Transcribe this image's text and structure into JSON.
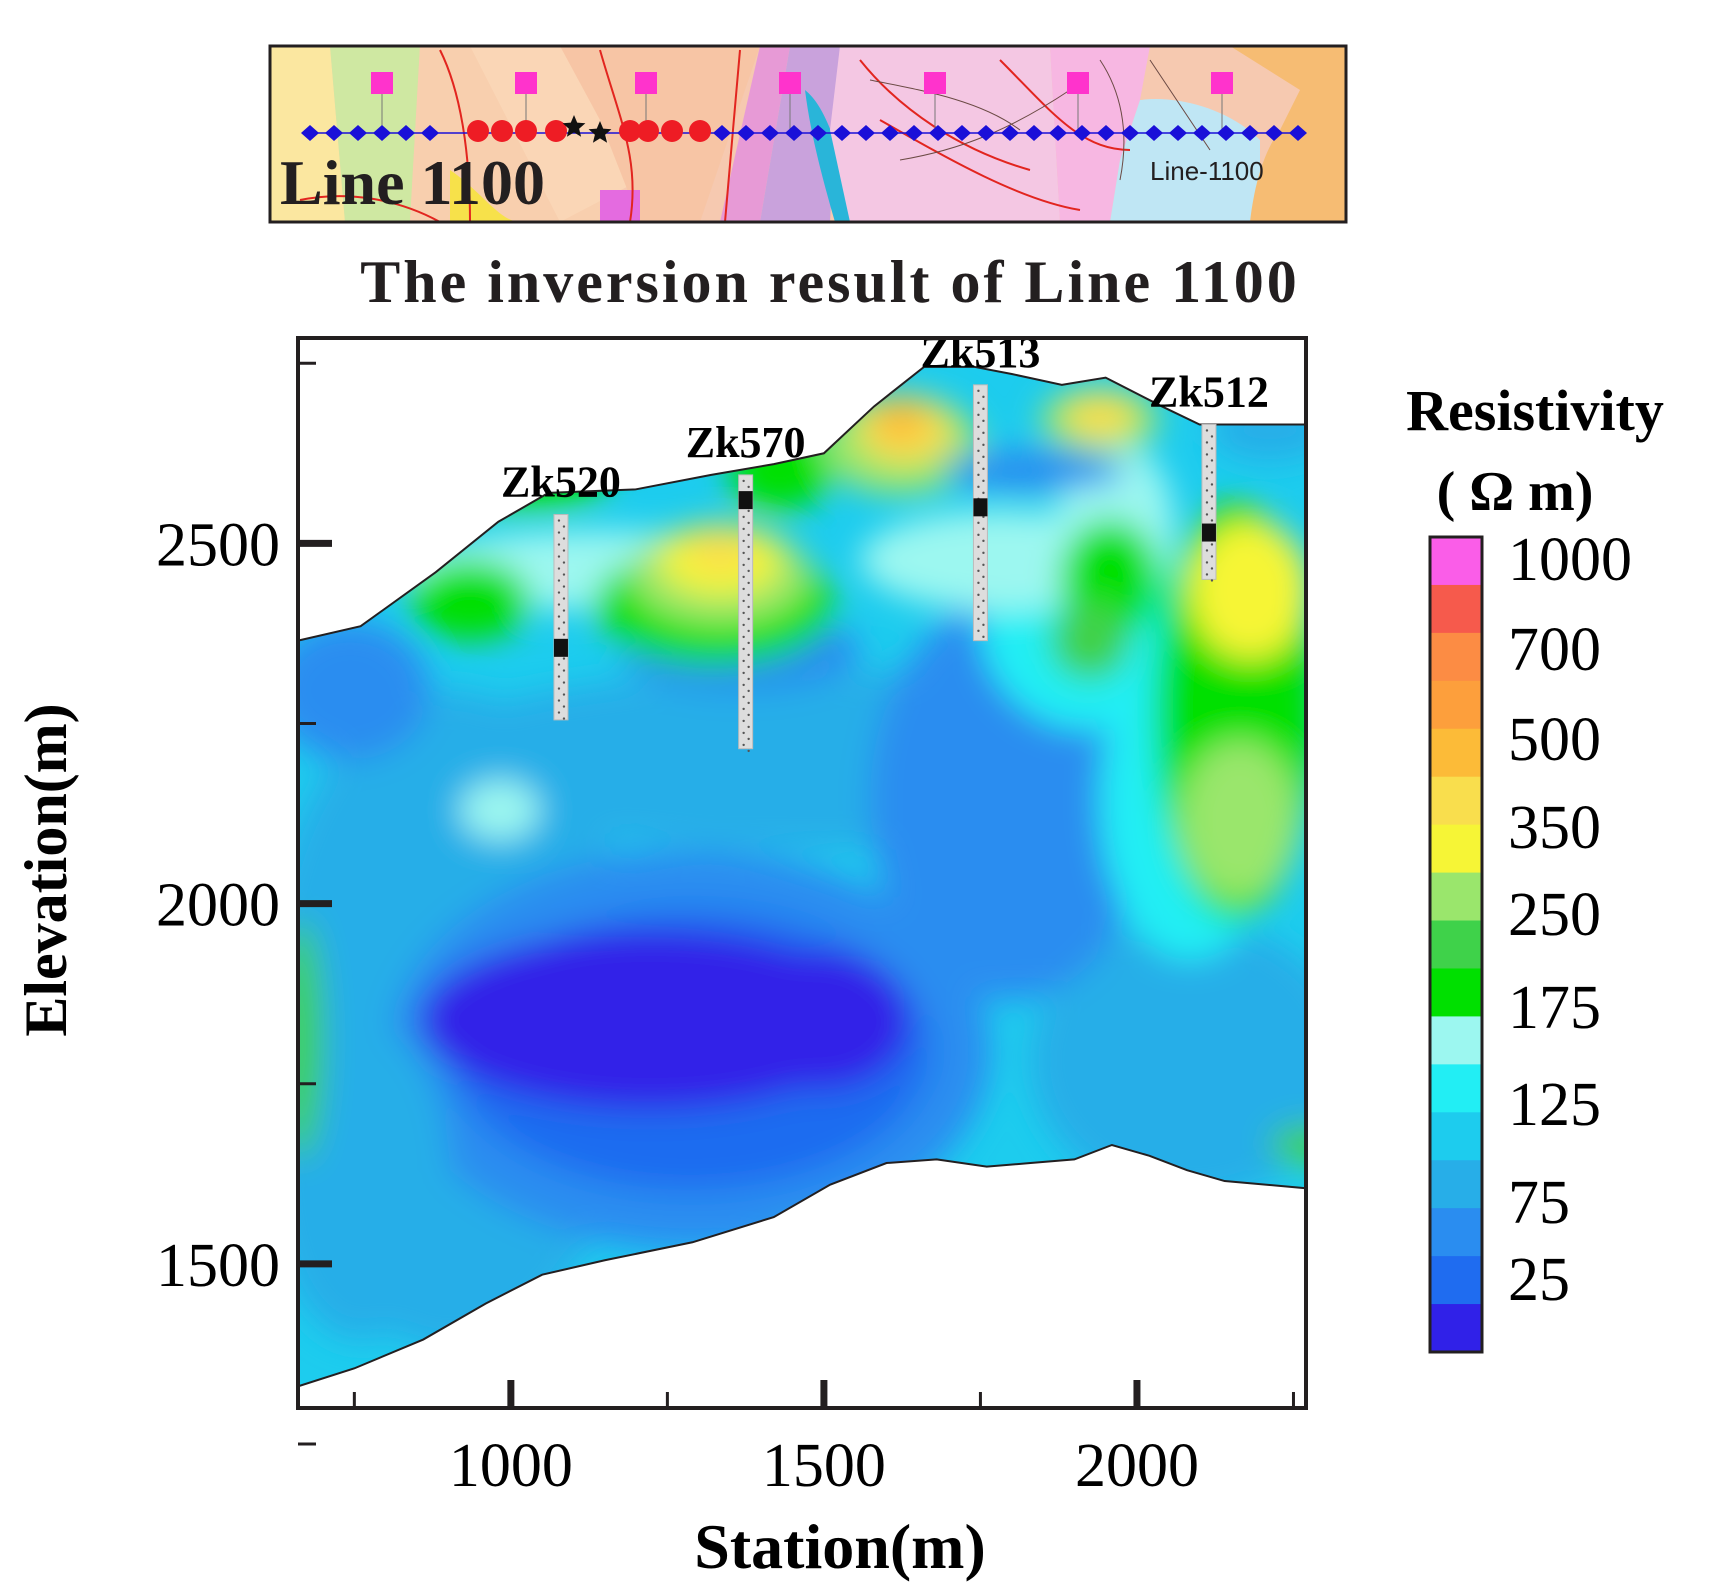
{
  "map_inset": {
    "label": "Line 1100",
    "map_label": "Line-1100",
    "colors": {
      "magnetotelluric_site": "#ff33cc",
      "station_blue": "#1a10d8",
      "station_red": "#ee1c24",
      "star": "#111111"
    }
  },
  "chart_data": {
    "type": "heatmap",
    "title": "The inversion result of Line 1100",
    "xlabel": "Station(m)",
    "ylabel": "Elevation(m)",
    "x_ticks": [
      1000,
      1500,
      2000
    ],
    "y_ticks": [
      1500,
      2000,
      2500
    ],
    "xlim": [
      660,
      2270
    ],
    "ylim": [
      1300,
      2785
    ],
    "colorbar": {
      "title": "Resistivity",
      "unit": "( Ω m)",
      "tick_labels": [
        "1000",
        "700",
        "500",
        "350",
        "250",
        "175",
        "125",
        "75",
        "25"
      ],
      "colors": [
        "#3021e8",
        "#1f6cf0",
        "#2a8df0",
        "#27aee8",
        "#1dccee",
        "#22eef4",
        "#9cf7f0",
        "#00e000",
        "#3fd24a",
        "#9ae66c",
        "#f6f536",
        "#f9de4d",
        "#fcbb38",
        "#fd9f3c",
        "#fc8c44",
        "#f65a4c",
        "#fa5de8"
      ]
    },
    "boreholes": [
      {
        "name": "Zk520",
        "x": 1080,
        "top": 2540,
        "bottom": 2255,
        "marker": 2355
      },
      {
        "name": "Zk570",
        "x": 1375,
        "top": 2595,
        "bottom": 2215,
        "marker": 2560
      },
      {
        "name": "Zk513",
        "x": 1750,
        "top": 2720,
        "bottom": 2365,
        "marker": 2550
      },
      {
        "name": "Zk512",
        "x": 2115,
        "top": 2665,
        "bottom": 2450,
        "marker": 2515
      }
    ],
    "surface_top": [
      [
        660,
        2365
      ],
      [
        760,
        2385
      ],
      [
        880,
        2460
      ],
      [
        980,
        2530
      ],
      [
        1060,
        2570
      ],
      [
        1200,
        2575
      ],
      [
        1320,
        2595
      ],
      [
        1420,
        2610
      ],
      [
        1500,
        2625
      ],
      [
        1580,
        2690
      ],
      [
        1660,
        2745
      ],
      [
        1740,
        2745
      ],
      [
        1800,
        2735
      ],
      [
        1880,
        2720
      ],
      [
        1950,
        2730
      ],
      [
        2040,
        2690
      ],
      [
        2100,
        2665
      ],
      [
        2270,
        2665
      ]
    ],
    "surface_bottom": [
      [
        660,
        1330
      ],
      [
        750,
        1355
      ],
      [
        860,
        1395
      ],
      [
        960,
        1445
      ],
      [
        1050,
        1485
      ],
      [
        1150,
        1505
      ],
      [
        1290,
        1530
      ],
      [
        1420,
        1565
      ],
      [
        1510,
        1610
      ],
      [
        1600,
        1640
      ],
      [
        1680,
        1645
      ],
      [
        1760,
        1635
      ],
      [
        1830,
        1640
      ],
      [
        1900,
        1645
      ],
      [
        1960,
        1665
      ],
      [
        2020,
        1650
      ],
      [
        2080,
        1630
      ],
      [
        2140,
        1615
      ],
      [
        2270,
        1605
      ]
    ]
  }
}
